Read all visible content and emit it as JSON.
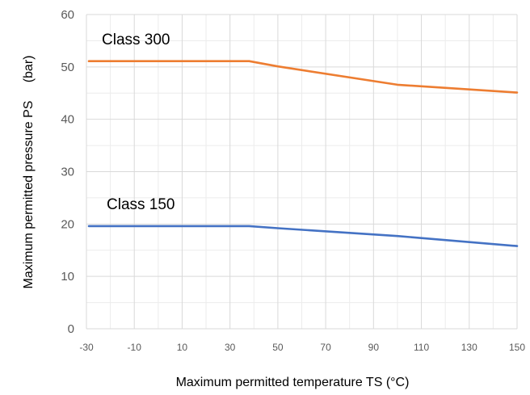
{
  "chart_data": {
    "type": "line",
    "xlabel": "Maximum permitted temperature TS (°C)",
    "ylabel": "Maximum permitted pressure PS     (bar)",
    "xlim": [
      -30,
      150
    ],
    "ylim": [
      0,
      60
    ],
    "xticks": [
      -30,
      -10,
      10,
      30,
      50,
      70,
      90,
      110,
      130,
      150
    ],
    "yticks": [
      0,
      10,
      20,
      30,
      40,
      50,
      60
    ],
    "grid": true,
    "series": [
      {
        "name": "Class 300",
        "color": "#ED7D31",
        "points": [
          [
            -29,
            51.1
          ],
          [
            38,
            51.1
          ],
          [
            50,
            50.1
          ],
          [
            100,
            46.6
          ],
          [
            150,
            45.1
          ]
        ]
      },
      {
        "name": "Class 150",
        "color": "#4472C4",
        "points": [
          [
            -29,
            19.6
          ],
          [
            38,
            19.6
          ],
          [
            50,
            19.2
          ],
          [
            100,
            17.7
          ],
          [
            150,
            15.8
          ]
        ]
      }
    ]
  }
}
